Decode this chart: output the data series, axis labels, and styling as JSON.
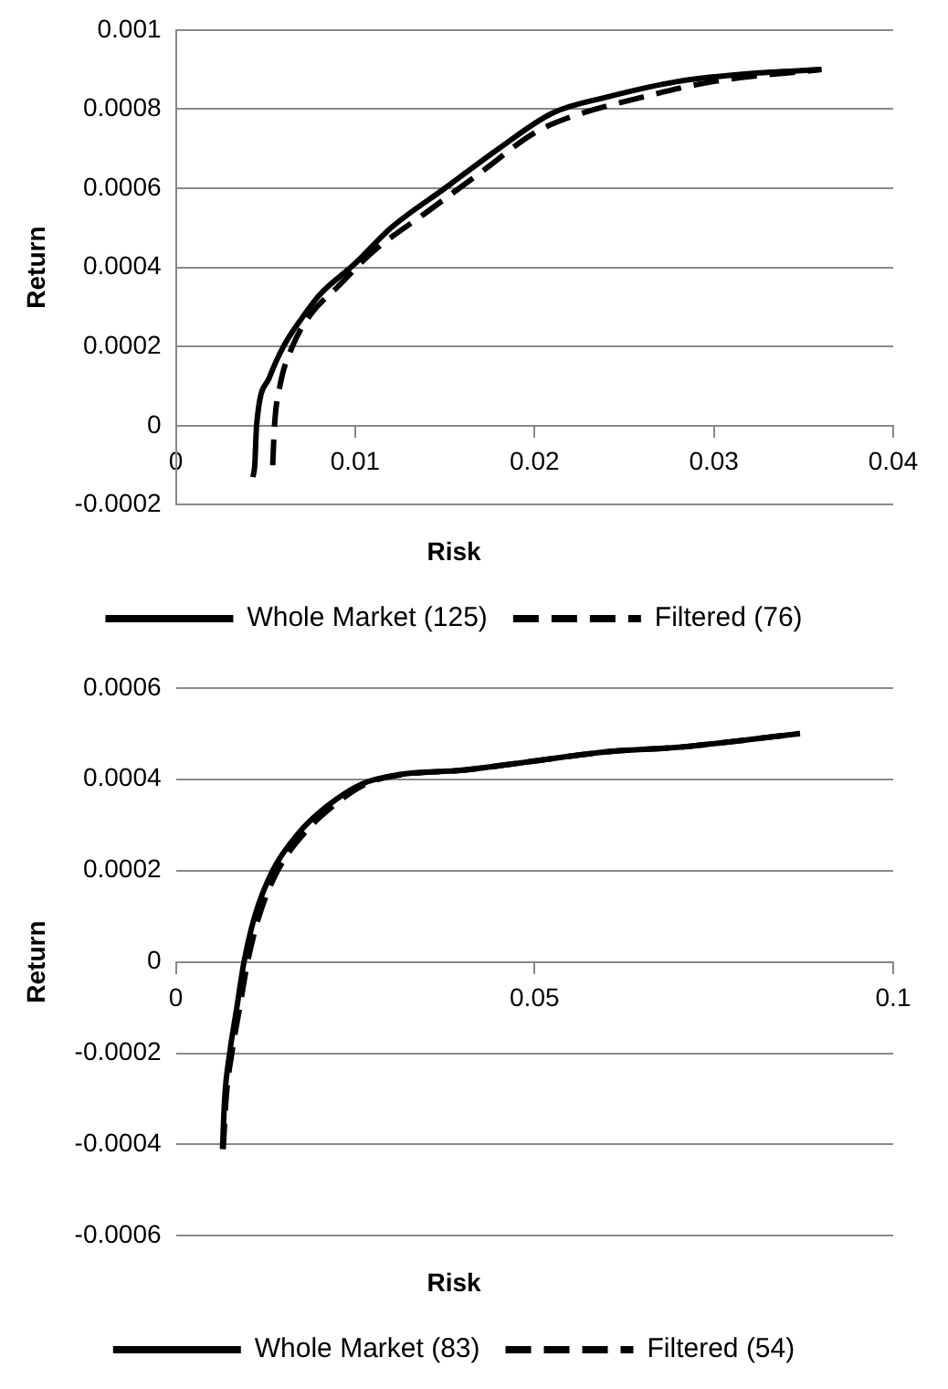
{
  "chart_data": [
    {
      "type": "line",
      "xlabel": "Risk",
      "ylabel": "Return",
      "xlim": [
        0,
        0.04
      ],
      "xticks": [
        0,
        0.01,
        0.02,
        0.03,
        0.04
      ],
      "ylim": [
        -0.0002,
        0.001
      ],
      "yticks": [
        -0.0002,
        0,
        0.0002,
        0.0004,
        0.0006,
        0.0008,
        0.001
      ],
      "grid": "y",
      "legend": "bottom",
      "marker": "none",
      "series": [
        {
          "name": "Whole Market (125)",
          "color": "#000000",
          "line_style": "solid",
          "x": [
            0.0043,
            0.0044,
            0.0045,
            0.0052,
            0.006,
            0.007,
            0.008,
            0.01,
            0.012,
            0.015,
            0.018,
            0.021,
            0.024,
            0.028,
            0.032,
            0.036
          ],
          "values": [
            -0.00013,
            -0.0001,
            0,
            0.00012,
            0.0002,
            0.00027,
            0.00033,
            0.00041,
            0.0005,
            0.0006,
            0.0007,
            0.00079,
            0.00083,
            0.00087,
            0.00089,
            0.0009
          ]
        },
        {
          "name": "Filtered (76)",
          "color": "#000000",
          "line_style": "dashed",
          "x": [
            0.0054,
            0.0055,
            0.0058,
            0.0065,
            0.0075,
            0.009,
            0.011,
            0.014,
            0.017,
            0.02,
            0.022,
            0.026,
            0.03,
            0.036
          ],
          "values": [
            -0.0001,
            0,
            0.0001,
            0.0002,
            0.00028,
            0.00035,
            0.00044,
            0.00054,
            0.00064,
            0.00074,
            0.00078,
            0.00083,
            0.00087,
            0.0009
          ]
        }
      ]
    },
    {
      "type": "line",
      "xlabel": "Risk",
      "ylabel": "Return",
      "xlim": [
        0,
        0.1
      ],
      "xticks": [
        0,
        0.05,
        0.1
      ],
      "ylim": [
        -0.0006,
        0.0006
      ],
      "yticks": [
        -0.0006,
        -0.0004,
        -0.0002,
        0,
        0.0002,
        0.0004,
        0.0006
      ],
      "grid": "y",
      "legend": "bottom",
      "marker": "none",
      "series": [
        {
          "name": "Whole Market (83)",
          "color": "#000000",
          "line_style": "solid",
          "x": [
            0.0065,
            0.0068,
            0.0075,
            0.0085,
            0.0095,
            0.011,
            0.0135,
            0.017,
            0.021,
            0.026,
            0.031,
            0.04,
            0.05,
            0.06,
            0.07,
            0.087
          ],
          "values": [
            -0.00041,
            -0.0003,
            -0.0002,
            -0.0001,
            0,
            0.0001,
            0.0002,
            0.00028,
            0.00034,
            0.00039,
            0.00041,
            0.00042,
            0.00044,
            0.00046,
            0.00047,
            0.0005
          ]
        },
        {
          "name": "Filtered (54)",
          "color": "#000000",
          "line_style": "dashed",
          "x": [
            0.0066,
            0.007,
            0.0078,
            0.0089,
            0.01,
            0.0116,
            0.0142,
            0.0178,
            0.0218,
            0.0265,
            0.0315,
            0.04,
            0.05,
            0.06,
            0.07,
            0.087
          ],
          "values": [
            -0.00041,
            -0.0003,
            -0.0002,
            -0.0001,
            0,
            0.0001,
            0.0002,
            0.00028,
            0.00034,
            0.00039,
            0.00041,
            0.00042,
            0.00044,
            0.00046,
            0.00047,
            0.0005
          ]
        }
      ]
    }
  ]
}
